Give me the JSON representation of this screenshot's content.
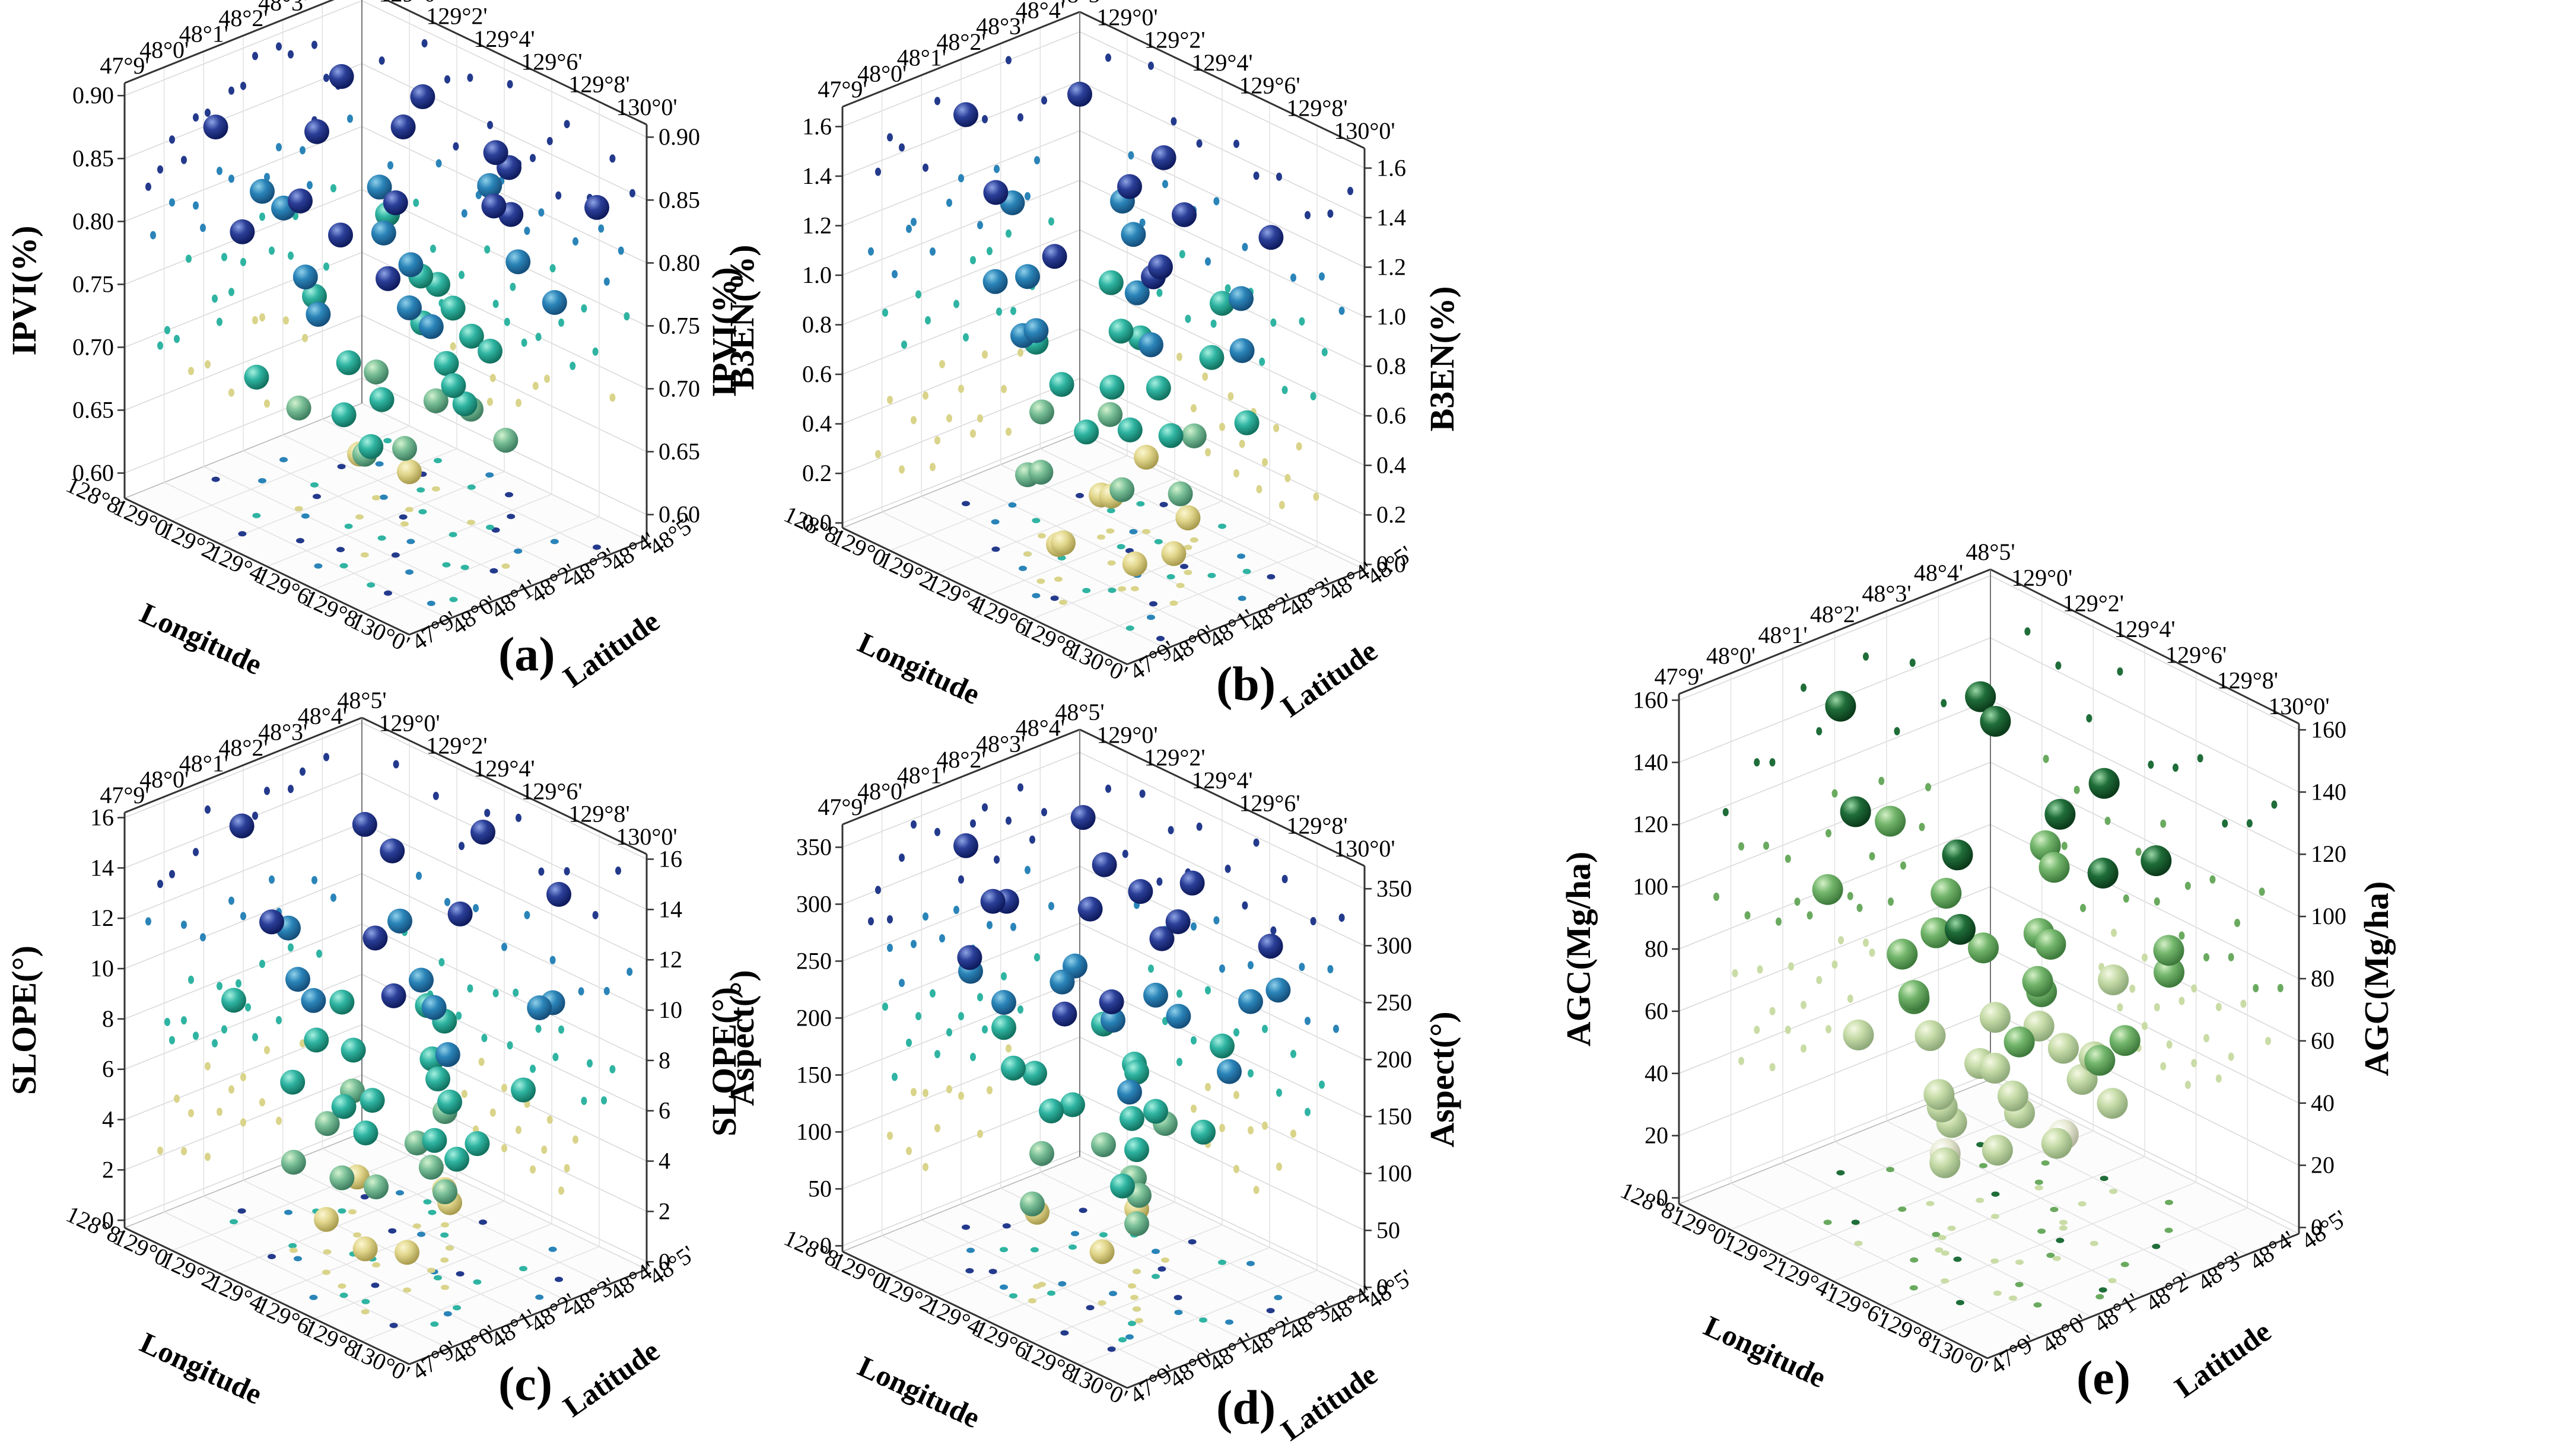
{
  "figure": {
    "lon_ticks": [
      "128°8'",
      "129°0'",
      "129°2'",
      "129°4'",
      "129°6'",
      "129°8'",
      "130°0'"
    ],
    "lat_ticks": [
      "47°9'",
      "48°0'",
      "48°1'",
      "48°2'",
      "48°3'",
      "48°4'",
      "48°5'"
    ],
    "xlabel": "Longitude",
    "zlabel": "Latitude"
  },
  "chart_data": [
    {
      "type": "scatter",
      "panel": "(a)",
      "ylabel": "IPVI(%)",
      "ylim": [
        0.58,
        0.91
      ],
      "yticks": [
        "0.60",
        "0.65",
        "0.70",
        "0.75",
        "0.80",
        "0.85",
        "0.90"
      ],
      "palette": "blue",
      "series": [
        {
          "name": "IPVI",
          "x": [
            0.07,
            0.22,
            0.3,
            0.38,
            0.45,
            0.52,
            0.6,
            0.66,
            0.72,
            0.8,
            0.88,
            0.95,
            0.15,
            0.27,
            0.33,
            0.41,
            0.49,
            0.55,
            0.63,
            0.69,
            0.75,
            0.84,
            0.91,
            0.1,
            0.19,
            0.36,
            0.44,
            0.58,
            0.67,
            0.78,
            0.86,
            0.93,
            0.25,
            0.35,
            0.47,
            0.53,
            0.62,
            0.7,
            0.82,
            0.28,
            0.4,
            0.51,
            0.57,
            0.65,
            0.74,
            0.88,
            0.32,
            0.46,
            0.55,
            0.61,
            0.45,
            0.5
          ],
          "z": [
            0.3,
            0.65,
            0.45,
            0.8,
            0.2,
            0.55,
            0.9,
            0.35,
            0.7,
            0.15,
            0.5,
            0.85,
            0.4,
            0.75,
            0.1,
            0.6,
            0.95,
            0.25,
            0.45,
            0.8,
            0.3,
            0.65,
            0.2,
            0.55,
            0.88,
            0.33,
            0.72,
            0.12,
            0.58,
            0.42,
            0.78,
            0.27,
            0.5,
            0.9,
            0.38,
            0.62,
            0.18,
            0.7,
            0.45,
            0.22,
            0.58,
            0.85,
            0.4,
            0.68,
            0.15,
            0.55,
            0.35,
            0.76,
            0.52,
            0.28,
            0.45,
            0.6
          ],
          "values": [
            0.86,
            0.89,
            0.87,
            0.88,
            0.85,
            0.89,
            0.84,
            0.86,
            0.88,
            0.83,
            0.87,
            0.85,
            0.81,
            0.8,
            0.82,
            0.79,
            0.81,
            0.83,
            0.8,
            0.82,
            0.79,
            0.81,
            0.8,
            0.78,
            0.76,
            0.77,
            0.75,
            0.78,
            0.76,
            0.74,
            0.77,
            0.75,
            0.73,
            0.72,
            0.71,
            0.73,
            0.7,
            0.72,
            0.71,
            0.69,
            0.68,
            0.7,
            0.69,
            0.67,
            0.69,
            0.68,
            0.66,
            0.65,
            0.64,
            0.66,
            0.63,
            0.61
          ]
        }
      ]
    },
    {
      "type": "scatter",
      "panel": "(b)",
      "ylabel": "B3EN(%)",
      "ylim": [
        -0.02,
        1.68
      ],
      "yticks": [
        "0.0",
        "0.2",
        "0.4",
        "0.6",
        "0.8",
        "1.0",
        "1.2",
        "1.4",
        "1.6"
      ],
      "palette": "blue",
      "series": [
        {
          "name": "B3EN",
          "x": [
            0.1,
            0.25,
            0.33,
            0.42,
            0.55,
            0.62,
            0.7,
            0.8,
            0.88,
            0.95,
            0.18,
            0.3,
            0.4,
            0.48,
            0.58,
            0.66,
            0.75,
            0.85,
            0.92,
            0.22,
            0.36,
            0.45,
            0.52,
            0.6,
            0.68,
            0.78,
            0.86,
            0.28,
            0.38,
            0.47,
            0.56,
            0.64,
            0.72,
            0.82,
            0.35,
            0.44,
            0.53,
            0.61,
            0.69,
            0.77,
            0.4,
            0.5,
            0.57,
            0.65,
            0.73,
            0.83,
            0.45,
            0.55,
            0.63,
            0.71
          ],
          "z": [
            0.4,
            0.7,
            0.25,
            0.85,
            0.55,
            0.15,
            0.6,
            0.35,
            0.75,
            0.2,
            0.5,
            0.82,
            0.3,
            0.65,
            0.12,
            0.45,
            0.78,
            0.28,
            0.58,
            0.38,
            0.7,
            0.22,
            0.55,
            0.88,
            0.32,
            0.62,
            0.18,
            0.48,
            0.8,
            0.36,
            0.66,
            0.26,
            0.52,
            0.72,
            0.42,
            0.6,
            0.2,
            0.75,
            0.35,
            0.5,
            0.3,
            0.68,
            0.45,
            0.15,
            0.58,
            0.4,
            0.55,
            0.25,
            0.7,
            0.38
          ],
          "values": [
            1.55,
            1.6,
            1.42,
            1.38,
            1.45,
            1.36,
            1.4,
            1.3,
            1.35,
            1.48,
            1.2,
            1.15,
            1.1,
            1.18,
            1.05,
            1.12,
            1.02,
            1.08,
            0.98,
            0.95,
            0.9,
            0.92,
            0.85,
            0.88,
            0.8,
            0.86,
            0.78,
            0.7,
            0.65,
            0.68,
            0.6,
            0.62,
            0.55,
            0.58,
            0.48,
            0.45,
            0.42,
            0.4,
            0.38,
            0.35,
            0.3,
            0.28,
            0.25,
            0.22,
            0.2,
            0.18,
            0.15,
            0.12,
            0.1,
            0.08
          ]
        }
      ]
    },
    {
      "type": "scatter",
      "panel": "(c)",
      "ylabel": "SLOPE(°)",
      "ylim": [
        -0.3,
        16.2
      ],
      "yticks": [
        "0",
        "2",
        "4",
        "6",
        "8",
        "10",
        "12",
        "14",
        "16"
      ],
      "palette": "blue",
      "series": [
        {
          "name": "SLOPE",
          "x": [
            0.12,
            0.26,
            0.35,
            0.44,
            0.55,
            0.63,
            0.72,
            0.82,
            0.9,
            0.2,
            0.3,
            0.4,
            0.5,
            0.58,
            0.67,
            0.77,
            0.86,
            0.94,
            0.15,
            0.28,
            0.38,
            0.47,
            0.54,
            0.62,
            0.7,
            0.8,
            0.88,
            0.24,
            0.34,
            0.43,
            0.52,
            0.6,
            0.68,
            0.78,
            0.85,
            0.3,
            0.42,
            0.5,
            0.58,
            0.66,
            0.75,
            0.36,
            0.46,
            0.55,
            0.64,
            0.72,
            0.4,
            0.5,
            0.6,
            0.7
          ],
          "z": [
            0.35,
            0.7,
            0.2,
            0.6,
            0.85,
            0.3,
            0.55,
            0.15,
            0.75,
            0.45,
            0.8,
            0.25,
            0.65,
            0.1,
            0.5,
            0.88,
            0.33,
            0.62,
            0.28,
            0.58,
            0.82,
            0.4,
            0.7,
            0.18,
            0.48,
            0.72,
            0.25,
            0.52,
            0.3,
            0.78,
            0.42,
            0.65,
            0.2,
            0.55,
            0.38,
            0.6,
            0.35,
            0.75,
            0.22,
            0.5,
            0.45,
            0.28,
            0.68,
            0.4,
            0.58,
            0.15,
            0.5,
            0.25,
            0.65,
            0.35
          ],
          "values": [
            15.0,
            14.5,
            13.0,
            14.8,
            15.2,
            13.5,
            14.0,
            12.8,
            15.0,
            11.0,
            10.5,
            10.8,
            9.8,
            11.5,
            10.2,
            9.5,
            10.0,
            11.2,
            8.5,
            8.0,
            7.5,
            7.8,
            8.2,
            7.2,
            7.6,
            6.8,
            7.0,
            6.5,
            6.2,
            5.8,
            6.0,
            5.5,
            6.4,
            5.2,
            5.6,
            4.5,
            4.8,
            4.2,
            4.0,
            3.8,
            3.5,
            3.2,
            3.0,
            2.8,
            2.5,
            2.2,
            2.0,
            1.8,
            1.5,
            1.2
          ]
        }
      ]
    },
    {
      "type": "scatter",
      "panel": "(d)",
      "ylabel": "Aspect(°)",
      "ylim": [
        -5,
        370
      ],
      "yticks": [
        "0",
        "50",
        "100",
        "150",
        "200",
        "250",
        "300",
        "350"
      ],
      "palette": "blue",
      "series": [
        {
          "name": "Aspect",
          "x": [
            0.1,
            0.22,
            0.32,
            0.42,
            0.52,
            0.62,
            0.72,
            0.82,
            0.92,
            0.16,
            0.28,
            0.38,
            0.48,
            0.58,
            0.68,
            0.78,
            0.88,
            0.2,
            0.3,
            0.4,
            0.5,
            0.6,
            0.7,
            0.8,
            0.9,
            0.25,
            0.35,
            0.45,
            0.55,
            0.65,
            0.75,
            0.85,
            0.3,
            0.4,
            0.5,
            0.6,
            0.7,
            0.8,
            0.35,
            0.45,
            0.55,
            0.65,
            0.75,
            0.4,
            0.5,
            0.6,
            0.7,
            0.45,
            0.55,
            0.62
          ],
          "z": [
            0.4,
            0.75,
            0.25,
            0.6,
            0.85,
            0.3,
            0.55,
            0.15,
            0.7,
            0.5,
            0.2,
            0.8,
            0.35,
            0.65,
            0.12,
            0.48,
            0.78,
            0.3,
            0.62,
            0.2,
            0.72,
            0.42,
            0.88,
            0.25,
            0.55,
            0.38,
            0.68,
            0.18,
            0.58,
            0.82,
            0.32,
            0.5,
            0.45,
            0.75,
            0.28,
            0.6,
            0.4,
            0.22,
            0.55,
            0.3,
            0.7,
            0.45,
            0.35,
            0.62,
            0.2,
            0.5,
            0.4,
            0.28,
            0.58,
            0.35
          ],
          "values": [
            330,
            340,
            320,
            335,
            310,
            345,
            325,
            300,
            315,
            280,
            270,
            290,
            260,
            285,
            275,
            255,
            265,
            240,
            230,
            245,
            220,
            235,
            225,
            210,
            215,
            190,
            180,
            195,
            170,
            185,
            175,
            160,
            150,
            145,
            155,
            140,
            135,
            130,
            120,
            110,
            115,
            100,
            105,
            85,
            80,
            90,
            70,
            60,
            50,
            40
          ]
        }
      ]
    },
    {
      "type": "scatter",
      "panel": "(e)",
      "ylabel": "AGC(Mg/ha)",
      "ylim": [
        -2,
        162
      ],
      "yticks": [
        "0",
        "20",
        "40",
        "60",
        "80",
        "100",
        "120",
        "140",
        "160"
      ],
      "palette": "green",
      "series": [
        {
          "name": "AGC",
          "x": [
            0.12,
            0.22,
            0.32,
            0.42,
            0.52,
            0.6,
            0.68,
            0.76,
            0.84,
            0.92,
            0.18,
            0.28,
            0.38,
            0.48,
            0.56,
            0.64,
            0.72,
            0.8,
            0.88,
            0.24,
            0.34,
            0.44,
            0.54,
            0.62,
            0.7,
            0.78,
            0.86,
            0.94,
            0.3,
            0.4,
            0.5,
            0.58,
            0.66,
            0.74,
            0.82,
            0.9,
            0.36,
            0.46,
            0.54,
            0.62,
            0.7,
            0.78,
            0.42,
            0.5,
            0.58,
            0.66,
            0.74,
            0.48,
            0.56,
            0.64
          ],
          "z": [
            0.4,
            0.75,
            0.25,
            0.6,
            0.85,
            0.3,
            0.55,
            0.15,
            0.7,
            0.45,
            0.5,
            0.2,
            0.8,
            0.35,
            0.65,
            0.12,
            0.48,
            0.78,
            0.28,
            0.62,
            0.38,
            0.72,
            0.22,
            0.55,
            0.88,
            0.32,
            0.58,
            0.42,
            0.68,
            0.18,
            0.52,
            0.82,
            0.36,
            0.6,
            0.26,
            0.5,
            0.45,
            0.7,
            0.3,
            0.62,
            0.4,
            0.25,
            0.55,
            0.35,
            0.72,
            0.2,
            0.48,
            0.4,
            0.3,
            0.6
          ],
          "values": [
            148,
            142,
            130,
            150,
            125,
            128,
            135,
            118,
            122,
            132,
            110,
            105,
            100,
            95,
            108,
            92,
            98,
            88,
            102,
            85,
            80,
            78,
            82,
            75,
            72,
            76,
            70,
            74,
            68,
            65,
            62,
            66,
            60,
            58,
            63,
            55,
            52,
            50,
            48,
            54,
            46,
            44,
            42,
            40,
            38,
            36,
            35,
            32,
            30,
            28
          ]
        }
      ]
    }
  ]
}
